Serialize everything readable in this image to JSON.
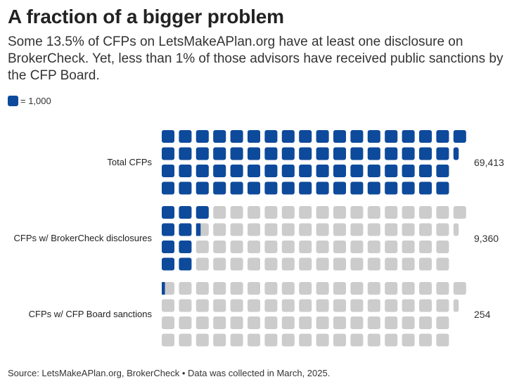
{
  "title": "A fraction of a bigger problem",
  "subtitle": "Some 13.5% of CFPs on LetsMakeAPlan.org have at least one disclosure on BrokerCheck. Yet, less than 1% of those advisors have received public sanctions by the CFP Board.",
  "legend": {
    "label": "= 1,000",
    "unit_value": 1000
  },
  "colors": {
    "filled": "#0d4a9b",
    "empty": "#cccccc"
  },
  "source": "Source: LetsMakeAPlan.org, BrokerCheck • Data was collected in March, 2025.",
  "chart_data": {
    "type": "waffle",
    "unit": 1000,
    "categories": [
      "Total CFPs",
      "CFPs w/ BrokerCheck disclosures",
      "CFPs w/ CFP Board sanctions"
    ],
    "values": [
      69413,
      9360,
      254
    ],
    "value_labels": [
      "69,413",
      "9,360",
      "254"
    ],
    "total": 69413
  }
}
